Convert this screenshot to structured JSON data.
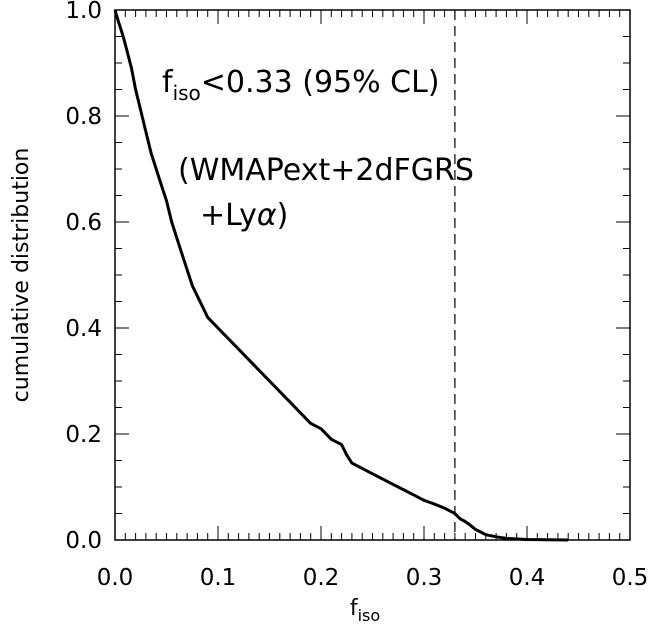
{
  "chart_data": {
    "type": "line",
    "title": "",
    "xlabel": "f",
    "xlabel_sub": "iso",
    "ylabel": "cumulative distribution",
    "xlim": [
      0,
      0.5
    ],
    "ylim": [
      0,
      1.0
    ],
    "x_ticks": [
      0.0,
      0.1,
      0.2,
      0.3,
      0.4,
      0.5
    ],
    "x_tick_labels": [
      "0.0",
      "0.1",
      "0.2",
      "0.3",
      "0.4",
      "0.5"
    ],
    "y_ticks": [
      0.0,
      0.2,
      0.4,
      0.6,
      0.8,
      1.0
    ],
    "y_tick_labels": [
      "0.0",
      "0.2",
      "0.4",
      "0.6",
      "0.8",
      "1.0"
    ],
    "grid": false,
    "series": [
      {
        "x": [
          0.0,
          0.003,
          0.008,
          0.012,
          0.016,
          0.02,
          0.025,
          0.03,
          0.035,
          0.04,
          0.045,
          0.05,
          0.055,
          0.06,
          0.065,
          0.07,
          0.075,
          0.08,
          0.085,
          0.09,
          0.095,
          0.1,
          0.105,
          0.11,
          0.12,
          0.13,
          0.14,
          0.15,
          0.16,
          0.17,
          0.18,
          0.19,
          0.2,
          0.21,
          0.22,
          0.225,
          0.23,
          0.24,
          0.25,
          0.26,
          0.27,
          0.28,
          0.29,
          0.3,
          0.31,
          0.32,
          0.33,
          0.335,
          0.34,
          0.345,
          0.35,
          0.355,
          0.36,
          0.37,
          0.38,
          0.4,
          0.42,
          0.44
        ],
        "y": [
          1.0,
          0.98,
          0.95,
          0.92,
          0.89,
          0.85,
          0.81,
          0.77,
          0.73,
          0.7,
          0.67,
          0.64,
          0.6,
          0.57,
          0.54,
          0.51,
          0.48,
          0.46,
          0.44,
          0.42,
          0.41,
          0.4,
          0.39,
          0.38,
          0.36,
          0.34,
          0.32,
          0.3,
          0.28,
          0.26,
          0.24,
          0.22,
          0.21,
          0.19,
          0.18,
          0.16,
          0.145,
          0.135,
          0.125,
          0.115,
          0.105,
          0.095,
          0.085,
          0.075,
          0.068,
          0.06,
          0.05,
          0.04,
          0.035,
          0.028,
          0.02,
          0.015,
          0.01,
          0.006,
          0.003,
          0.001,
          0.0005,
          0.0
        ]
      }
    ],
    "reference_line": {
      "x": 0.33,
      "style": "dashed"
    },
    "annotations": [
      {
        "base": "f",
        "sub": "iso",
        "rest": "<0.33 (95% CL)"
      },
      {
        "text": "(WMAPext+2dFGRS"
      },
      {
        "text": "+Ly",
        "greek": "α",
        "close": ")"
      }
    ]
  }
}
